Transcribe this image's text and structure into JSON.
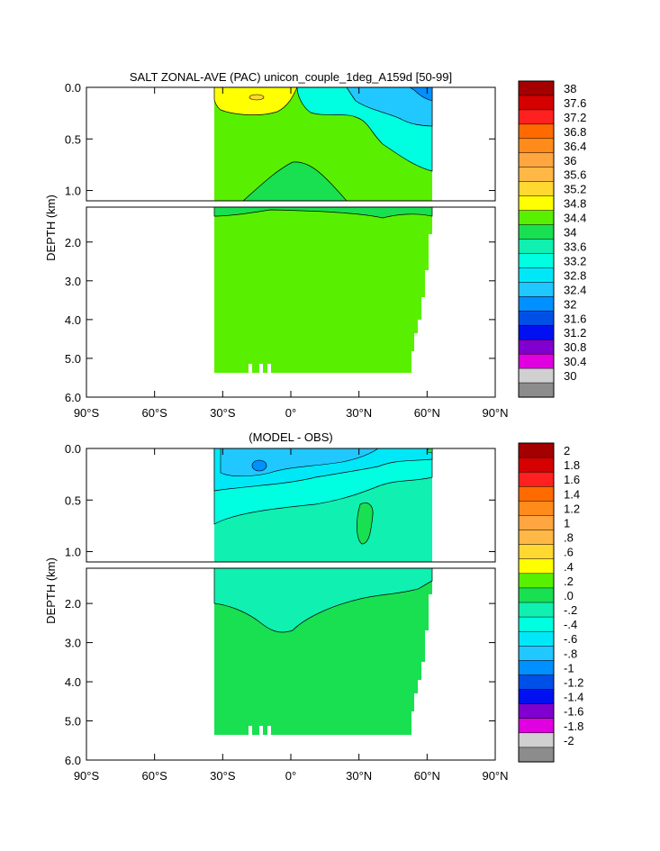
{
  "chart_data": [
    {
      "type": "heatmap",
      "title": "SALT ZONAL-AVE (PAC) unicon_couple_1deg_A159d [50-99]",
      "ylabel": "DEPTH (km)",
      "xlim": [
        -90,
        90
      ],
      "ylim_upper_km": [
        0.0,
        1.1
      ],
      "ylim_lower_km": [
        1.1,
        6.0
      ],
      "x_ticks": [
        {
          "value": -90,
          "label": "90°S"
        },
        {
          "value": -60,
          "label": "60°S"
        },
        {
          "value": -30,
          "label": "30°S"
        },
        {
          "value": 0,
          "label": "0°"
        },
        {
          "value": 30,
          "label": "30°N"
        },
        {
          "value": 60,
          "label": "60°N"
        },
        {
          "value": 90,
          "label": "90°N"
        }
      ],
      "y_ticks_upper": [
        {
          "value": 0.0,
          "label": "0.0"
        },
        {
          "value": 0.5,
          "label": "0.5"
        },
        {
          "value": 1.0,
          "label": "1.0"
        }
      ],
      "y_ticks_lower": [
        {
          "value": 2.0,
          "label": "2.0"
        },
        {
          "value": 3.0,
          "label": "3.0"
        },
        {
          "value": 4.0,
          "label": "4.0"
        },
        {
          "value": 5.0,
          "label": "5.0"
        },
        {
          "value": 6.0,
          "label": "6.0"
        }
      ],
      "data_lat_range": [
        -33,
        62
      ],
      "bottom_depth_km": 5.35,
      "background_value": 34.6,
      "features": [
        {
          "name": "subtropical-salinity-max",
          "value": 34.9,
          "lat_range": [
            -33,
            -2
          ],
          "depth_km": [
            0.0,
            0.22
          ]
        },
        {
          "name": "north-pacific-fresh-water",
          "value": 33.8,
          "lat_range": [
            10,
            62
          ],
          "depth_km": [
            0.0,
            0.7
          ]
        },
        {
          "name": "aaiw-dome",
          "value": 34.5,
          "lat_range": [
            -20,
            20
          ],
          "depth_km": [
            0.75,
            1.15
          ]
        }
      ],
      "colorbar": {
        "labels": [
          "38",
          "37.6",
          "37.2",
          "36.8",
          "36.4",
          "36",
          "35.6",
          "35.2",
          "34.8",
          "34.4",
          "34",
          "33.6",
          "33.2",
          "32.8",
          "32.4",
          "32",
          "31.6",
          "31.2",
          "30.8",
          "30.4",
          "30"
        ],
        "colors": [
          "#A50000",
          "#D50000",
          "#FF2020",
          "#FF6A00",
          "#FF8C1A",
          "#FFA640",
          "#FFB845",
          "#FFD830",
          "#FFFF00",
          "#58F000",
          "#18E050",
          "#10F0B0",
          "#00FFE0",
          "#00E8F8",
          "#20C8FF",
          "#0090FF",
          "#0050E8",
          "#0010F0",
          "#8000D0",
          "#E000E0",
          "#D0D0D0",
          "#8C8C8C"
        ]
      }
    },
    {
      "type": "heatmap",
      "title": "(MODEL - OBS)",
      "ylabel": "DEPTH (km)",
      "xlim": [
        -90,
        90
      ],
      "ylim_upper_km": [
        0.0,
        1.1
      ],
      "ylim_lower_km": [
        1.1,
        6.0
      ],
      "x_ticks": [
        {
          "value": -90,
          "label": "90°S"
        },
        {
          "value": -60,
          "label": "60°S"
        },
        {
          "value": -30,
          "label": "30°S"
        },
        {
          "value": 0,
          "label": "0°"
        },
        {
          "value": 30,
          "label": "30°N"
        },
        {
          "value": 60,
          "label": "60°N"
        },
        {
          "value": 90,
          "label": "90°N"
        }
      ],
      "y_ticks_upper": [
        {
          "value": 0.0,
          "label": "0.0"
        },
        {
          "value": 0.5,
          "label": "0.5"
        },
        {
          "value": 1.0,
          "label": "1.0"
        }
      ],
      "y_ticks_lower": [
        {
          "value": 2.0,
          "label": "2.0"
        },
        {
          "value": 3.0,
          "label": "3.0"
        },
        {
          "value": 4.0,
          "label": "4.0"
        },
        {
          "value": 5.0,
          "label": "5.0"
        },
        {
          "value": 6.0,
          "label": "6.0"
        }
      ],
      "data_lat_range": [
        -33,
        62
      ],
      "bottom_depth_km": 5.35,
      "background_value": 0.1,
      "features": [
        {
          "name": "upper-fresh-bias",
          "value": -0.3,
          "lat_range": [
            -33,
            62
          ],
          "depth_km": [
            0.0,
            2.5
          ]
        },
        {
          "name": "surface-fresh-bias",
          "value": -0.5,
          "lat_range": [
            -33,
            55
          ],
          "depth_km": [
            0.0,
            0.3
          ]
        }
      ],
      "colorbar": {
        "labels": [
          "2",
          "1.8",
          "1.6",
          "1.4",
          "1.2",
          "1",
          ".8",
          ".6",
          ".4",
          ".2",
          ".0",
          "-.2",
          "-.4",
          "-.6",
          "-.8",
          "-1",
          "-1.2",
          "-1.4",
          "-1.6",
          "-1.8",
          "-2"
        ],
        "colors": [
          "#A50000",
          "#D50000",
          "#FF2020",
          "#FF6A00",
          "#FF8C1A",
          "#FFA640",
          "#FFB845",
          "#FFD830",
          "#FFFF00",
          "#58F000",
          "#18E050",
          "#10F0B0",
          "#00FFE0",
          "#00E8F8",
          "#20C8FF",
          "#0090FF",
          "#0050E8",
          "#0010F0",
          "#8000D0",
          "#E000E0",
          "#D0D0D0",
          "#8C8C8C"
        ]
      }
    }
  ]
}
